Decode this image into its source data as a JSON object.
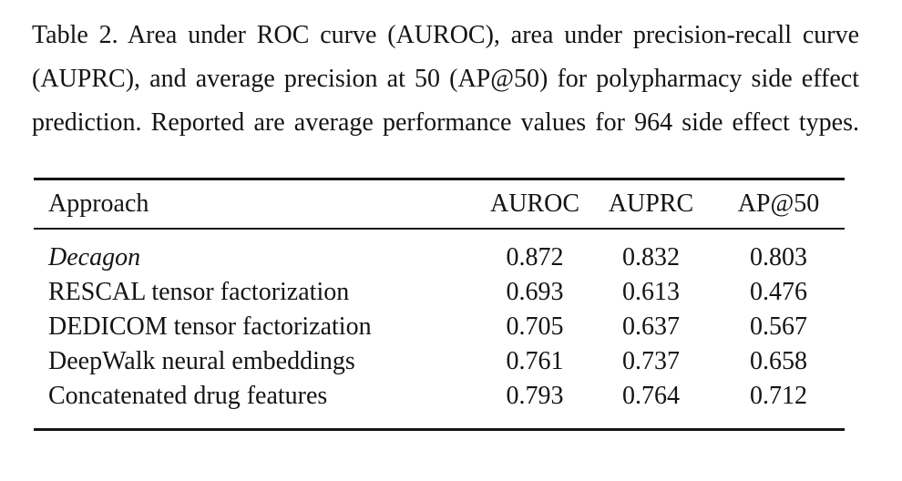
{
  "page": {
    "background_color": "#ffffff",
    "text_color": "#141414"
  },
  "caption": {
    "lines": [
      "Table 2. Area under ROC curve (AUROC), area under precision-recall curve",
      "(AUPRC), and average precision at 50 (AP@50) for polypharmacy side effect",
      "prediction. Reported are average performance values for 964 side effect types."
    ]
  },
  "table": {
    "columns": [
      "Approach",
      "AUROC",
      "AUPRC",
      "AP@50"
    ],
    "rows": [
      {
        "approach": "Decagon",
        "italic": true,
        "auroc": "0.872",
        "auprc": "0.832",
        "ap50": "0.803"
      },
      {
        "approach": "RESCAL tensor factorization",
        "italic": false,
        "auroc": "0.693",
        "auprc": "0.613",
        "ap50": "0.476"
      },
      {
        "approach": "DEDICOM tensor factorization",
        "italic": false,
        "auroc": "0.705",
        "auprc": "0.637",
        "ap50": "0.567"
      },
      {
        "approach": "DeepWalk neural embeddings",
        "italic": false,
        "auroc": "0.761",
        "auprc": "0.737",
        "ap50": "0.658"
      },
      {
        "approach": "Concatenated drug features",
        "italic": false,
        "auroc": "0.793",
        "auprc": "0.764",
        "ap50": "0.712"
      }
    ]
  }
}
